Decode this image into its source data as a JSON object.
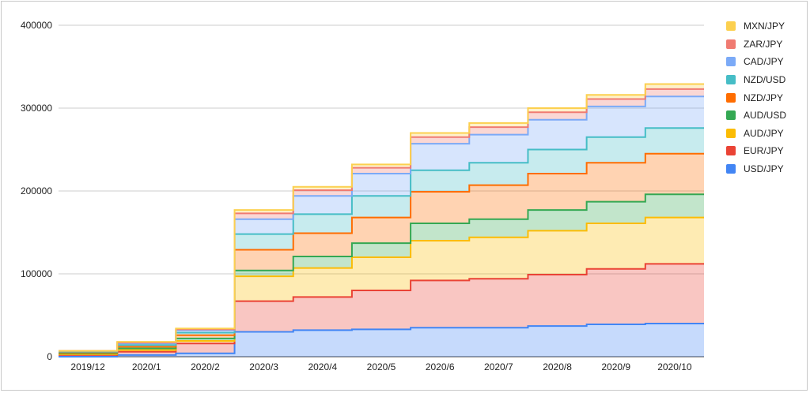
{
  "chart_data": {
    "type": "area",
    "stacked": true,
    "step": true,
    "categories": [
      "2019/12",
      "2020/1",
      "2020/2",
      "2020/3",
      "2020/4",
      "2020/5",
      "2020/6",
      "2020/7",
      "2020/8",
      "2020/9",
      "2020/10"
    ],
    "ylim": [
      0,
      400000
    ],
    "yticks": [
      "0",
      "100000",
      "200000",
      "300000",
      "400000"
    ],
    "grid": true,
    "legend_position": "right",
    "series": [
      {
        "name": "USD/JPY",
        "color": "#4285f4",
        "values": [
          0,
          2000,
          4000,
          30000,
          32000,
          33000,
          35000,
          35000,
          37000,
          39000,
          40000
        ]
      },
      {
        "name": "EUR/JPY",
        "color": "#ea4335",
        "values": [
          2000,
          4000,
          12000,
          37000,
          40000,
          47000,
          57000,
          59000,
          62000,
          67000,
          72000
        ]
      },
      {
        "name": "AUD/JPY",
        "color": "#fbbc04",
        "values": [
          1000,
          2000,
          3000,
          30000,
          35000,
          40000,
          48000,
          50000,
          53000,
          55000,
          56000
        ]
      },
      {
        "name": "AUD/USD",
        "color": "#34a853",
        "values": [
          1000,
          2000,
          3000,
          7000,
          14000,
          17000,
          21000,
          22000,
          25000,
          26000,
          28000
        ]
      },
      {
        "name": "NZD/JPY",
        "color": "#ff6d01",
        "values": [
          1000,
          2000,
          4000,
          25000,
          28000,
          31000,
          38000,
          41000,
          44000,
          47000,
          49000
        ]
      },
      {
        "name": "NZD/USD",
        "color": "#46bdc6",
        "values": [
          1000,
          2000,
          3000,
          19000,
          23000,
          26000,
          26000,
          27000,
          29000,
          31000,
          31000
        ]
      },
      {
        "name": "CAD/JPY",
        "color": "#7baaf7",
        "values": [
          1000,
          2000,
          3000,
          18000,
          22000,
          27000,
          32000,
          34000,
          36000,
          37000,
          38000
        ]
      },
      {
        "name": "ZAR/JPY",
        "color": "#f07b72",
        "values": [
          0,
          1000,
          1000,
          7000,
          7000,
          7000,
          8000,
          9000,
          9000,
          9000,
          9000
        ]
      },
      {
        "name": "MXN/JPY",
        "color": "#fcd04f",
        "values": [
          0,
          1000,
          1000,
          4000,
          4000,
          4000,
          5000,
          5000,
          5000,
          5000,
          6000
        ]
      }
    ]
  }
}
